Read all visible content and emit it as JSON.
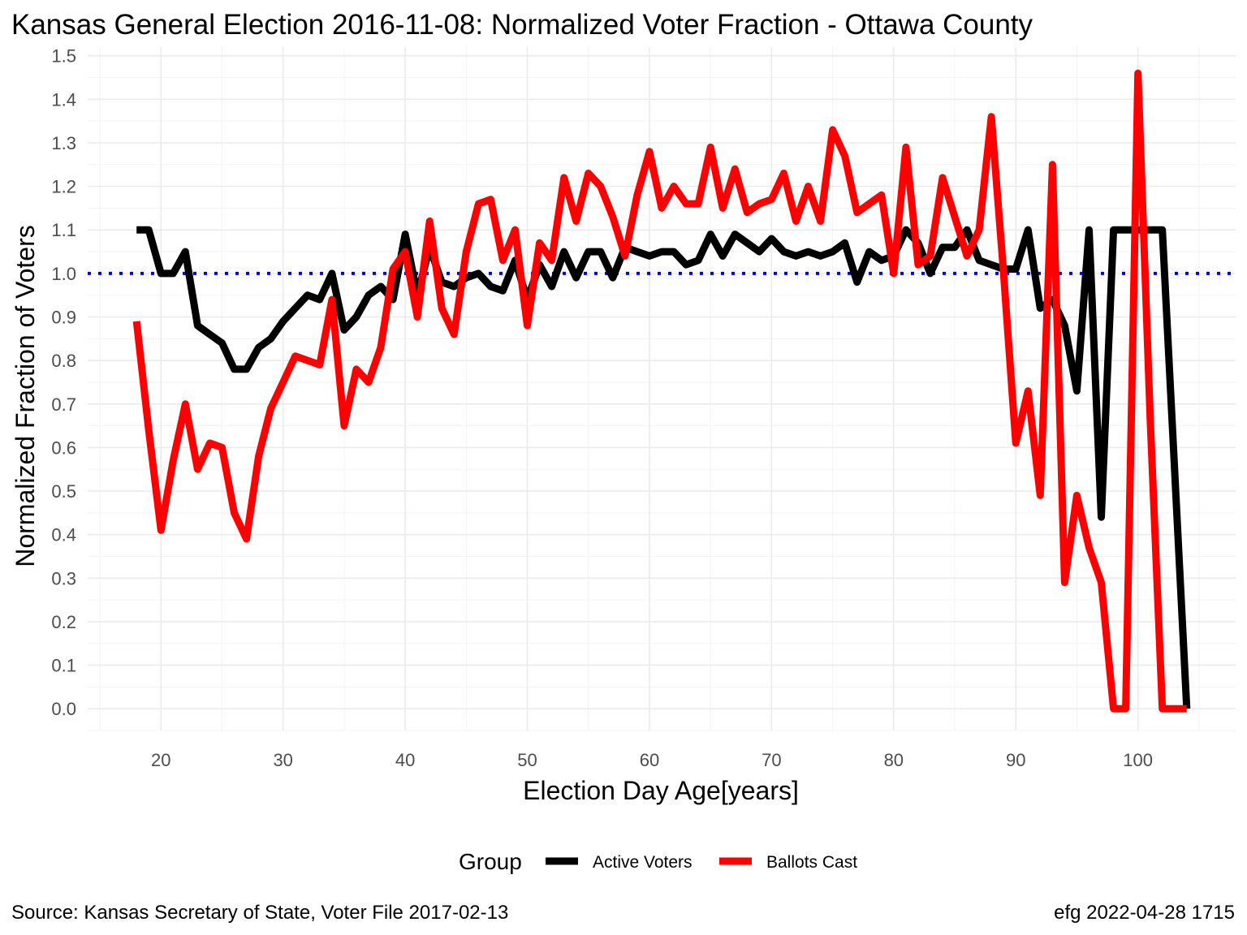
{
  "chart_data": {
    "type": "line",
    "title": "Kansas General Election 2016-11-08:  Normalized Voter Fraction - Ottawa County",
    "xlabel": "Election Day Age[years]",
    "ylabel": "Normalized Fraction of Voters",
    "xlim": [
      14,
      108
    ],
    "ylim": [
      -0.05,
      1.52
    ],
    "x_ticks": [
      20,
      30,
      40,
      50,
      60,
      70,
      80,
      90,
      100
    ],
    "x_tick_labels": [
      "20",
      "30",
      "40",
      "50",
      "60",
      "70",
      "80",
      "90",
      "100"
    ],
    "y_ticks": [
      0,
      0.1,
      0.2,
      0.3,
      0.4,
      0.5,
      0.6,
      0.7,
      0.8,
      0.9,
      1.0,
      1.1,
      1.2,
      1.3,
      1.4,
      1.5
    ],
    "y_tick_labels": [
      "0.0",
      "0.1",
      "0.2",
      "0.3",
      "0.4",
      "0.5",
      "0.6",
      "0.7",
      "0.8",
      "0.9",
      "1.0",
      "1.1",
      "1.2",
      "1.3",
      "1.4",
      "1.5"
    ],
    "grid": true,
    "reference_line": {
      "y": 1.0,
      "color": "#0000ff",
      "style": "dotted"
    },
    "legend": {
      "title": "Group",
      "position": "bottom"
    },
    "series": [
      {
        "name": "Active Voters",
        "color": "#000000",
        "x": [
          18,
          19,
          20,
          21,
          22,
          23,
          24,
          25,
          26,
          27,
          28,
          29,
          30,
          31,
          32,
          33,
          34,
          35,
          36,
          37,
          38,
          39,
          40,
          41,
          42,
          43,
          44,
          45,
          46,
          47,
          48,
          49,
          50,
          51,
          52,
          53,
          54,
          55,
          56,
          57,
          58,
          59,
          60,
          61,
          62,
          63,
          64,
          65,
          66,
          67,
          68,
          69,
          70,
          71,
          72,
          73,
          74,
          75,
          76,
          77,
          78,
          79,
          80,
          81,
          82,
          83,
          84,
          85,
          86,
          87,
          88,
          89,
          90,
          91,
          92,
          93,
          94,
          95,
          96,
          97,
          98,
          99,
          100,
          101,
          102,
          103,
          104
        ],
        "values": [
          1.1,
          1.1,
          1.0,
          1.0,
          1.05,
          0.88,
          0.86,
          0.84,
          0.78,
          0.78,
          0.83,
          0.85,
          0.89,
          0.92,
          0.95,
          0.94,
          1.0,
          0.87,
          0.9,
          0.95,
          0.97,
          0.94,
          1.09,
          0.95,
          1.06,
          0.98,
          0.97,
          0.99,
          1.0,
          0.97,
          0.96,
          1.03,
          0.94,
          1.02,
          0.97,
          1.05,
          0.99,
          1.05,
          1.05,
          0.99,
          1.06,
          1.05,
          1.04,
          1.05,
          1.05,
          1.02,
          1.03,
          1.09,
          1.04,
          1.09,
          1.07,
          1.05,
          1.08,
          1.05,
          1.04,
          1.05,
          1.04,
          1.05,
          1.07,
          0.98,
          1.05,
          1.03,
          1.04,
          1.1,
          1.07,
          1.0,
          1.06,
          1.06,
          1.1,
          1.03,
          1.02,
          1.01,
          1.01,
          1.1,
          0.92,
          0.94,
          0.88,
          0.73,
          1.1,
          0.44,
          1.1,
          1.1,
          1.1,
          1.1,
          1.1,
          0.55,
          0.0
        ]
      },
      {
        "name": "Ballots Cast",
        "color": "#ff0000",
        "x": [
          18,
          19,
          20,
          21,
          22,
          23,
          24,
          25,
          26,
          27,
          28,
          29,
          30,
          31,
          32,
          33,
          34,
          35,
          36,
          37,
          38,
          39,
          40,
          41,
          42,
          43,
          44,
          45,
          46,
          47,
          48,
          49,
          50,
          51,
          52,
          53,
          54,
          55,
          56,
          57,
          58,
          59,
          60,
          61,
          62,
          63,
          64,
          65,
          66,
          67,
          68,
          69,
          70,
          71,
          72,
          73,
          74,
          75,
          76,
          77,
          78,
          79,
          80,
          81,
          82,
          83,
          84,
          85,
          86,
          87,
          88,
          89,
          90,
          91,
          92,
          93,
          94,
          95,
          96,
          97,
          98,
          99,
          100,
          101,
          102,
          103,
          104
        ],
        "values": [
          0.89,
          0.64,
          0.41,
          0.57,
          0.7,
          0.55,
          0.61,
          0.6,
          0.45,
          0.39,
          0.58,
          0.69,
          0.75,
          0.81,
          0.8,
          0.79,
          0.94,
          0.65,
          0.78,
          0.75,
          0.83,
          1.01,
          1.05,
          0.9,
          1.12,
          0.92,
          0.86,
          1.05,
          1.16,
          1.17,
          1.03,
          1.1,
          0.88,
          1.07,
          1.03,
          1.22,
          1.12,
          1.23,
          1.2,
          1.13,
          1.04,
          1.18,
          1.28,
          1.15,
          1.2,
          1.16,
          1.16,
          1.29,
          1.15,
          1.24,
          1.14,
          1.16,
          1.17,
          1.23,
          1.12,
          1.2,
          1.12,
          1.33,
          1.27,
          1.14,
          1.16,
          1.18,
          1.0,
          1.29,
          1.02,
          1.04,
          1.22,
          1.13,
          1.04,
          1.1,
          1.36,
          1.0,
          0.61,
          0.73,
          0.49,
          1.25,
          0.29,
          0.49,
          0.37,
          0.29,
          0.0,
          0.0,
          1.46,
          0.67,
          0.0,
          0.0,
          0.0
        ]
      }
    ]
  },
  "caption_left": "Source:  Kansas Secretary of State, Voter File  2017-02-13",
  "caption_right": "efg 2022-04-28 1715"
}
